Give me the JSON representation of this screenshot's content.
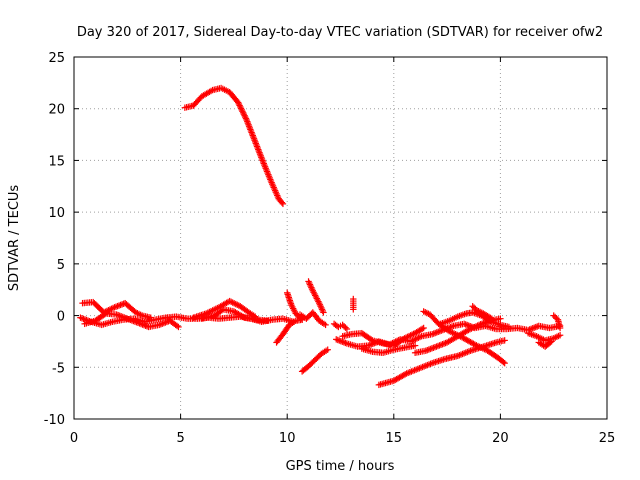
{
  "chart_data": {
    "type": "scatter",
    "title": "Day 320 of 2017, Sidereal Day-to-day VTEC variation (SDTVAR) for receiver ofw2",
    "xlabel": "GPS time / hours",
    "ylabel": "SDTVAR / TECUs",
    "xlim": [
      0,
      25
    ],
    "ylim": [
      -10,
      25
    ],
    "grid": true,
    "marker": "plus",
    "color": "#ff0000",
    "x_ticks": [
      "0",
      "5",
      "10",
      "15",
      "20",
      "25"
    ],
    "y_ticks": [
      "-10",
      "-5",
      "0",
      "5",
      "10",
      "15",
      "20",
      "25"
    ],
    "series": [
      {
        "name": "ofw2",
        "tracks": [
          [
            [
              5.2,
              20.1
            ],
            [
              5.6,
              20.3
            ],
            [
              6.0,
              21.2
            ],
            [
              6.5,
              21.8
            ],
            [
              6.9,
              22.0
            ],
            [
              7.3,
              21.6
            ],
            [
              7.7,
              20.6
            ],
            [
              8.1,
              18.9
            ],
            [
              8.5,
              16.8
            ],
            [
              8.9,
              14.7
            ],
            [
              9.3,
              12.7
            ],
            [
              9.6,
              11.3
            ],
            [
              9.8,
              10.8
            ]
          ],
          [
            [
              0.3,
              -0.2
            ],
            [
              0.8,
              -0.6
            ],
            [
              1.3,
              -0.9
            ],
            [
              1.8,
              -0.6
            ],
            [
              2.3,
              -0.4
            ],
            [
              2.8,
              -0.3
            ],
            [
              3.3,
              -0.6
            ],
            [
              3.8,
              -0.4
            ],
            [
              4.3,
              -0.2
            ],
            [
              4.8,
              -0.1
            ],
            [
              5.3,
              -0.3
            ],
            [
              5.8,
              -0.3
            ],
            [
              6.3,
              -0.2
            ],
            [
              6.8,
              -0.3
            ],
            [
              7.3,
              -0.2
            ],
            [
              7.8,
              -0.1
            ],
            [
              8.3,
              -0.3
            ],
            [
              8.8,
              -0.6
            ],
            [
              9.3,
              -0.4
            ],
            [
              9.8,
              -0.3
            ],
            [
              10.3,
              -0.6
            ]
          ],
          [
            [
              0.4,
              1.2
            ],
            [
              0.9,
              1.3
            ],
            [
              1.4,
              0.3
            ],
            [
              1.9,
              0.8
            ],
            [
              2.4,
              1.2
            ],
            [
              2.9,
              0.3
            ],
            [
              3.2,
              0.0
            ],
            [
              3.6,
              -0.2
            ]
          ],
          [
            [
              0.5,
              -0.8
            ],
            [
              1.0,
              -0.5
            ],
            [
              1.5,
              0.2
            ],
            [
              2.0,
              0.1
            ],
            [
              2.5,
              -0.3
            ],
            [
              3.0,
              -0.7
            ],
            [
              3.5,
              -1.1
            ],
            [
              4.0,
              -0.9
            ],
            [
              4.5,
              -0.5
            ],
            [
              4.9,
              -1.1
            ]
          ],
          [
            [
              5.6,
              -0.2
            ],
            [
              6.2,
              0.2
            ],
            [
              6.8,
              0.8
            ],
            [
              7.3,
              1.4
            ],
            [
              7.8,
              0.9
            ],
            [
              8.2,
              0.3
            ],
            [
              8.5,
              -0.1
            ]
          ],
          [
            [
              6.0,
              -0.3
            ],
            [
              6.6,
              0.0
            ],
            [
              7.0,
              0.6
            ],
            [
              7.5,
              0.4
            ],
            [
              8.0,
              -0.2
            ],
            [
              8.6,
              -0.4
            ],
            [
              9.1,
              -0.5
            ]
          ],
          [
            [
              9.5,
              -2.6
            ],
            [
              9.8,
              -1.8
            ],
            [
              10.1,
              -0.9
            ],
            [
              10.4,
              -0.5
            ],
            [
              10.7,
              -0.4
            ]
          ],
          [
            [
              10.0,
              2.2
            ],
            [
              10.2,
              1.0
            ],
            [
              10.4,
              0.2
            ],
            [
              10.7,
              -0.4
            ]
          ],
          [
            [
              10.6,
              0.1
            ],
            [
              10.9,
              -0.3
            ],
            [
              11.2,
              0.3
            ],
            [
              11.5,
              -0.5
            ],
            [
              11.8,
              -0.9
            ]
          ],
          [
            [
              11.0,
              3.3
            ],
            [
              11.2,
              2.4
            ],
            [
              11.5,
              1.2
            ],
            [
              11.7,
              0.3
            ]
          ],
          [
            [
              10.7,
              -5.4
            ],
            [
              11.0,
              -4.9
            ],
            [
              11.3,
              -4.3
            ],
            [
              11.6,
              -3.7
            ],
            [
              11.9,
              -3.3
            ]
          ],
          [
            [
              12.2,
              -0.8
            ],
            [
              12.4,
              -1.1
            ],
            [
              12.6,
              -0.9
            ],
            [
              12.8,
              -1.3
            ]
          ],
          [
            [
              13.1,
              1.6
            ],
            [
              13.1,
              1.0
            ],
            [
              13.1,
              0.6
            ]
          ],
          [
            [
              12.3,
              -2.3
            ],
            [
              12.8,
              -2.7
            ],
            [
              13.3,
              -3.0
            ],
            [
              13.8,
              -2.9
            ],
            [
              14.3,
              -2.5
            ],
            [
              14.8,
              -2.8
            ],
            [
              15.3,
              -2.3
            ],
            [
              15.8,
              -2.5
            ],
            [
              16.3,
              -2.0
            ],
            [
              16.8,
              -1.8
            ],
            [
              17.3,
              -1.4
            ],
            [
              17.8,
              -1.0
            ],
            [
              18.3,
              -0.8
            ],
            [
              18.8,
              -1.2
            ],
            [
              19.3,
              -1.0
            ],
            [
              19.8,
              -1.3
            ],
            [
              20.3,
              -1.3
            ],
            [
              20.8,
              -1.2
            ],
            [
              21.3,
              -1.4
            ],
            [
              21.8,
              -1.0
            ],
            [
              22.3,
              -1.2
            ],
            [
              22.8,
              -1.0
            ]
          ],
          [
            [
              12.6,
              -2.0
            ],
            [
              13.0,
              -1.8
            ],
            [
              13.5,
              -1.7
            ],
            [
              14.0,
              -2.4
            ],
            [
              14.5,
              -2.7
            ],
            [
              15.0,
              -2.9
            ],
            [
              15.5,
              -2.2
            ],
            [
              16.0,
              -1.7
            ],
            [
              16.4,
              -1.2
            ]
          ],
          [
            [
              13.5,
              -3.2
            ],
            [
              14.0,
              -3.5
            ],
            [
              14.5,
              -3.6
            ],
            [
              15.0,
              -3.3
            ],
            [
              15.5,
              -3.1
            ],
            [
              16.0,
              -2.9
            ]
          ],
          [
            [
              14.3,
              -6.7
            ],
            [
              15.0,
              -6.3
            ],
            [
              15.6,
              -5.6
            ],
            [
              16.2,
              -5.1
            ],
            [
              16.8,
              -4.6
            ],
            [
              17.4,
              -4.2
            ],
            [
              18.0,
              -3.9
            ],
            [
              18.6,
              -3.4
            ],
            [
              19.2,
              -3.0
            ],
            [
              19.8,
              -2.6
            ],
            [
              20.2,
              -2.4
            ]
          ],
          [
            [
              16.4,
              0.4
            ],
            [
              16.7,
              0.1
            ],
            [
              17.1,
              -0.8
            ],
            [
              17.6,
              -1.5
            ],
            [
              18.2,
              -2.1
            ],
            [
              18.8,
              -2.8
            ],
            [
              19.4,
              -3.4
            ],
            [
              19.9,
              -4.1
            ],
            [
              20.2,
              -4.6
            ]
          ],
          [
            [
              16.0,
              -3.6
            ],
            [
              16.5,
              -3.4
            ],
            [
              17.0,
              -3.0
            ],
            [
              17.5,
              -2.6
            ],
            [
              18.0,
              -2.0
            ],
            [
              18.5,
              -1.4
            ],
            [
              19.0,
              -0.9
            ],
            [
              19.5,
              -0.5
            ],
            [
              20.0,
              -0.3
            ]
          ],
          [
            [
              17.2,
              -0.8
            ],
            [
              17.6,
              -0.5
            ],
            [
              18.0,
              -0.1
            ],
            [
              18.4,
              0.2
            ],
            [
              18.7,
              0.3
            ],
            [
              19.1,
              0.0
            ],
            [
              19.5,
              -0.4
            ]
          ],
          [
            [
              18.7,
              0.9
            ],
            [
              18.9,
              0.5
            ],
            [
              19.2,
              0.2
            ],
            [
              19.6,
              -0.3
            ]
          ],
          [
            [
              19.2,
              -0.1
            ],
            [
              19.6,
              -0.6
            ],
            [
              20.0,
              -0.9
            ],
            [
              20.4,
              -1.1
            ]
          ],
          [
            [
              21.3,
              -1.7
            ],
            [
              21.7,
              -2.0
            ],
            [
              22.1,
              -2.4
            ],
            [
              22.5,
              -2.2
            ],
            [
              22.8,
              -1.9
            ]
          ],
          [
            [
              21.8,
              -2.6
            ],
            [
              22.1,
              -3.0
            ],
            [
              22.4,
              -2.5
            ]
          ],
          [
            [
              22.5,
              0.0
            ],
            [
              22.7,
              -0.4
            ],
            [
              22.8,
              -1.2
            ]
          ]
        ]
      }
    ]
  }
}
